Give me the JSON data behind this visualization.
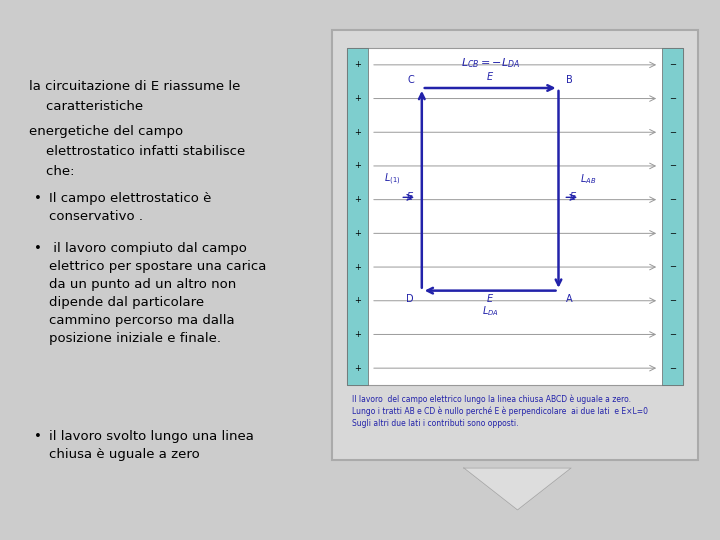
{
  "bg_color": "#cccccc",
  "text_color": "#000000",
  "blue": "#2222aa",
  "plate_color": "#7ecece",
  "line_color": "#999999",
  "caption_color": "#2222aa",
  "title_lines": [
    "la circuitazione di E riassume le",
    "    caratteristiche",
    "energetiche del campo",
    "    elettrostatico infatti stabilisce",
    "    che:"
  ],
  "bullets": [
    [
      "Il campo elettrostatico è",
      "conservativo ."
    ],
    [
      " il lavoro compiuto dal campo",
      "elettrico per spostare una carica",
      "da un punto ad un altro non",
      "dipende dal particolare",
      "cammino percorso ma dalla",
      "posizione iniziale e finale."
    ],
    [
      "il lavoro svolto lungo una linea",
      "chiusa è uguale a zero"
    ]
  ],
  "caption_lines": [
    "Il lavoro  del campo elettrico lungo la linea chiusa ABCD è uguale a zero.",
    "Lungo i tratti AB e CD è nullo perché E è perpendicolare  ai due lati  e E×L=0",
    "Sugli altri due lati i contributi sono opposti."
  ]
}
